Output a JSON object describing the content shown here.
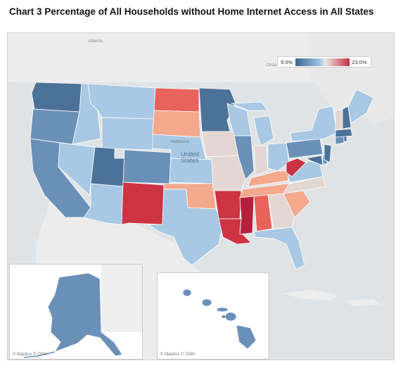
{
  "title": "Chart 3 Percentage of All Households without Home Internet Access in All States",
  "legend": {
    "min_label": "9.0%",
    "max_label": "23.0%",
    "min_color": "#3e6791",
    "max_color": "#c23041"
  },
  "basemap_labels": {
    "alberta": "Alberta",
    "ontario": "Onta",
    "united_states": [
      "United",
      "States"
    ]
  },
  "state_labels": {
    "nebraska": "Nebraska"
  },
  "attribution": {
    "alaska": "© Mapbox © OSM",
    "hawaii": "© Mapbox © OSM"
  },
  "colors": {
    "dark_blue": "#4d7299",
    "mid_blue": "#6b90b8",
    "light_blue": "#a8c8e3",
    "neutral": "#e3d7d3",
    "light_red": "#f4a88c",
    "mid_red": "#e8635c",
    "dark_red": "#cc3343",
    "darkest_red": "#b5203a",
    "land": "#ececec",
    "water": "#dfe3e6"
  }
}
